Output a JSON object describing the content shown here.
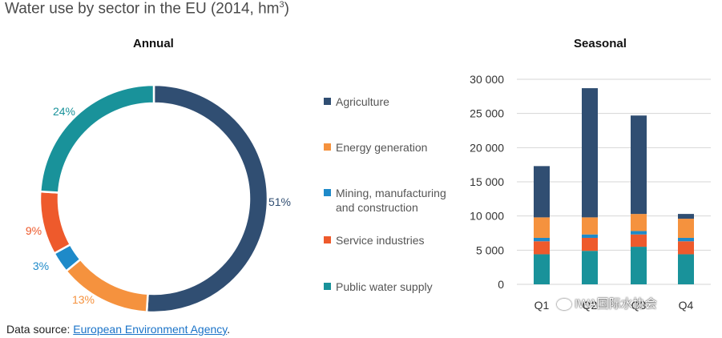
{
  "title": "Water use by sector in the EU (2014, hm",
  "title_sup": "3",
  "title_close": ")",
  "source": {
    "prefix": "Data source: ",
    "link_text": "European Environment Agency",
    "suffix": "."
  },
  "watermark": "IWA国际水协会",
  "colors": {
    "agriculture": "#304e72",
    "energy": "#f5923e",
    "mining": "#1e8ac9",
    "service": "#ee5a2c",
    "public": "#19929a"
  },
  "legend": [
    {
      "key": "agriculture",
      "label": "Agriculture"
    },
    {
      "key": "energy",
      "label": "Energy generation"
    },
    {
      "key": "mining",
      "label": "Mining, manufacturing and construction"
    },
    {
      "key": "service",
      "label": "Service industries"
    },
    {
      "key": "public",
      "label": "Public water supply"
    }
  ],
  "chart_data": [
    {
      "type": "pie",
      "title": "Annual",
      "donut": true,
      "labels": [
        "Agriculture",
        "Energy generation",
        "Mining, manufacturing and construction",
        "Service industries",
        "Public water supply"
      ],
      "keys": [
        "agriculture",
        "energy",
        "mining",
        "service",
        "public"
      ],
      "values": [
        51,
        13,
        3,
        9,
        24
      ],
      "value_labels": [
        "51%",
        "13%",
        "3%",
        "9%",
        "24%"
      ]
    },
    {
      "type": "bar",
      "stacked": true,
      "title": "Seasonal",
      "categories": [
        "Q1",
        "Q2",
        "Q3",
        "Q4"
      ],
      "series": [
        {
          "key": "public",
          "name": "Public water supply",
          "values": [
            4400,
            4900,
            5500,
            4400
          ]
        },
        {
          "key": "service",
          "name": "Service industries",
          "values": [
            1900,
            1900,
            1800,
            1900
          ]
        },
        {
          "key": "mining",
          "name": "Mining, manufacturing and construction",
          "values": [
            500,
            500,
            500,
            500
          ]
        },
        {
          "key": "energy",
          "name": "Energy generation",
          "values": [
            3000,
            2500,
            2500,
            2800
          ]
        },
        {
          "key": "agriculture",
          "name": "Agriculture",
          "values": [
            7500,
            18900,
            14400,
            700
          ]
        }
      ],
      "ylim": [
        0,
        30000
      ],
      "yticks": [
        0,
        5000,
        10000,
        15000,
        20000,
        25000,
        30000
      ],
      "ytick_labels": [
        "0",
        "5 000",
        "10 000",
        "15 000",
        "20 000",
        "25 000",
        "30 000"
      ],
      "grid": true
    }
  ]
}
